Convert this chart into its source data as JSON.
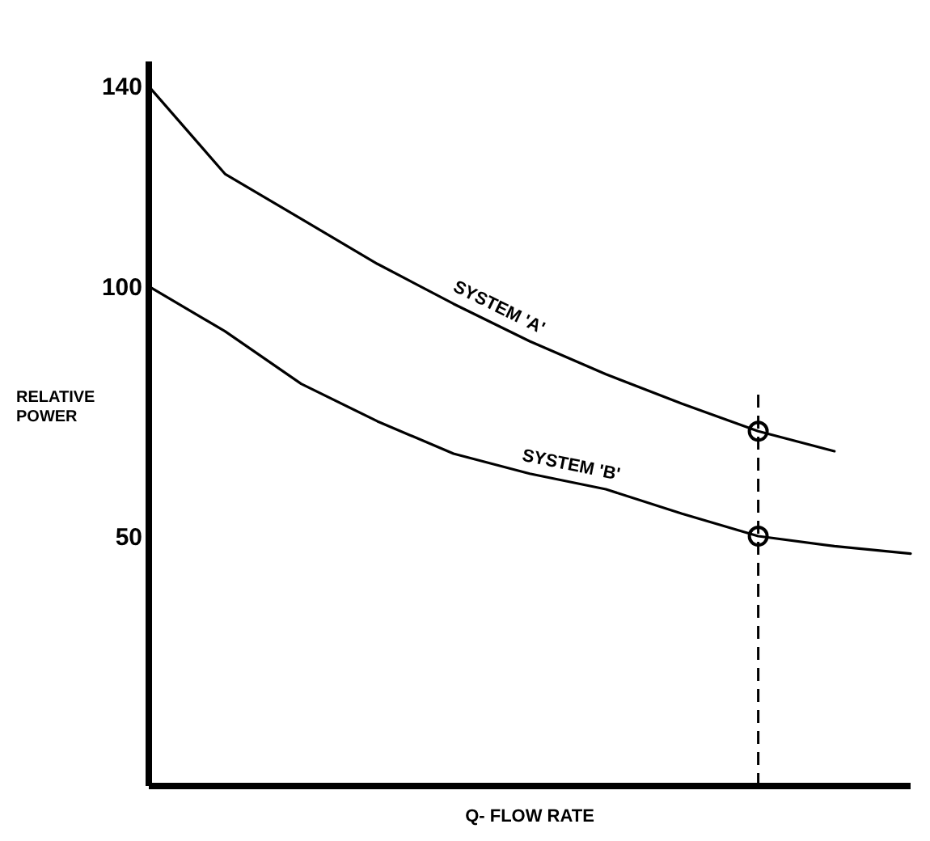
{
  "chart_data": {
    "type": "line",
    "xlabel": "Q- FLOW RATE",
    "ylabel": "RELATIVE POWER",
    "categories": [
      null,
      null,
      null,
      null,
      null,
      null,
      null,
      null,
      null,
      null,
      null
    ],
    "ylim": [
      0,
      145
    ],
    "yticks": [
      50,
      100,
      140
    ],
    "tick_labels": "y",
    "marker": "none",
    "line_style": "solid",
    "series": [
      {
        "name": "SYSTEM 'A'",
        "color": "#000000",
        "values": [
          140,
          122.5,
          113.5,
          104.5,
          96.5,
          89,
          82.4,
          76.5,
          71,
          67,
          null
        ]
      },
      {
        "name": "SYSTEM 'B'",
        "color": "#000000",
        "values": [
          100,
          91,
          80.5,
          73,
          66.5,
          62.5,
          59.4,
          54.5,
          50,
          48,
          46.5
        ]
      }
    ]
  }
}
